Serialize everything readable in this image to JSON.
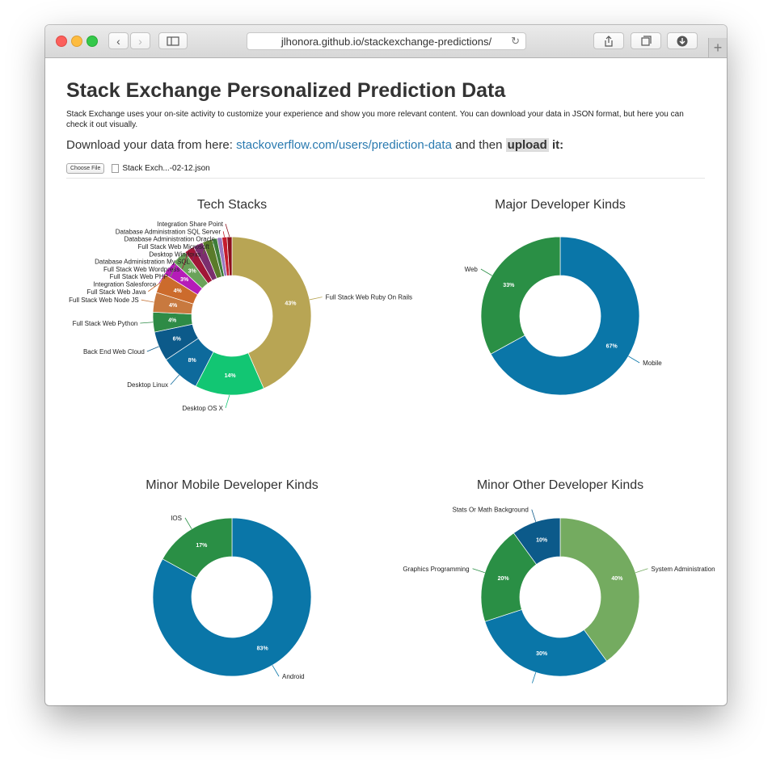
{
  "browser": {
    "url": "jlhonora.github.io/stackexchange-predictions/"
  },
  "page": {
    "title": "Stack Exchange Personalized Prediction Data",
    "intro": "Stack Exchange uses your on-site activity to customize your experience and show you more relevant content. You can download your data in JSON format, but here you can check it out visually.",
    "download_prefix": "Download your data from here: ",
    "download_link": "stackoverflow.com/users/prediction-data",
    "download_middle": " and then ",
    "download_upload": "upload",
    "download_suffix": " it:",
    "choose_file_label": "Choose File",
    "file_name": "Stack Exch...-02-12.json"
  },
  "chart_data": [
    {
      "type": "pie",
      "variant": "donut",
      "title": "Tech Stacks",
      "slices": [
        {
          "label": "Full Stack Web Ruby On Rails",
          "percent": 43,
          "color": "#b8a554"
        },
        {
          "label": "Desktop OS X",
          "percent": 14,
          "color": "#12c673"
        },
        {
          "label": "Desktop Linux",
          "percent": 8,
          "color": "#0e6a9c"
        },
        {
          "label": "Back End Web Cloud",
          "percent": 6,
          "color": "#0c5a8a"
        },
        {
          "label": "Full Stack Web Python",
          "percent": 4,
          "color": "#2e8b46"
        },
        {
          "label": "Full Stack Web Node JS",
          "percent": 4,
          "color": "#c8793f"
        },
        {
          "label": "Full Stack Web Java",
          "percent": 4,
          "color": "#cc6b2c"
        },
        {
          "label": "Integration Salesforce",
          "percent": 3,
          "color": "#b51cb8"
        },
        {
          "label": "Full Stack Web PHP",
          "percent": 3,
          "color": "#6aa25a"
        },
        {
          "label": "Full Stack Web Wordpress",
          "percent": 2,
          "color": "#a01637"
        },
        {
          "label": "Database Administration My SQL",
          "percent": 2,
          "color": "#7b2e6e"
        },
        {
          "label": "Desktop Windows",
          "percent": 2,
          "color": "#5a7b2a"
        },
        {
          "label": "Full Stack Web Microsoft",
          "percent": 1,
          "color": "#3e7d3a"
        },
        {
          "label": "Database Administration Oracle",
          "percent": 1,
          "color": "#9a7ac0"
        },
        {
          "label": "Database Administration SQL Server",
          "percent": 1,
          "color": "#c41c2c"
        },
        {
          "label": "Integration Share Point",
          "percent": 1,
          "color": "#8c0f1c"
        }
      ]
    },
    {
      "type": "pie",
      "variant": "donut",
      "title": "Major Developer Kinds",
      "slices": [
        {
          "label": "Mobile",
          "percent": 67,
          "color": "#0a76a8"
        },
        {
          "label": "Web",
          "percent": 33,
          "color": "#2a8f45"
        }
      ]
    },
    {
      "type": "pie",
      "variant": "donut",
      "title": "Minor Mobile Developer Kinds",
      "slices": [
        {
          "label": "Android",
          "percent": 83,
          "color": "#0a76a8"
        },
        {
          "label": "IOS",
          "percent": 17,
          "color": "#2a8f45"
        }
      ]
    },
    {
      "type": "pie",
      "variant": "donut",
      "title": "Minor Other Developer Kinds",
      "slices": [
        {
          "label": "System Administration",
          "percent": 40,
          "color": "#74ab60"
        },
        {
          "label": "",
          "percent": 30,
          "color": "#0a76a8"
        },
        {
          "label": "Graphics Programming",
          "percent": 20,
          "color": "#2a8f45"
        },
        {
          "label": "Stats Or Math Background",
          "percent": 10,
          "color": "#0c5a8a"
        }
      ]
    }
  ]
}
